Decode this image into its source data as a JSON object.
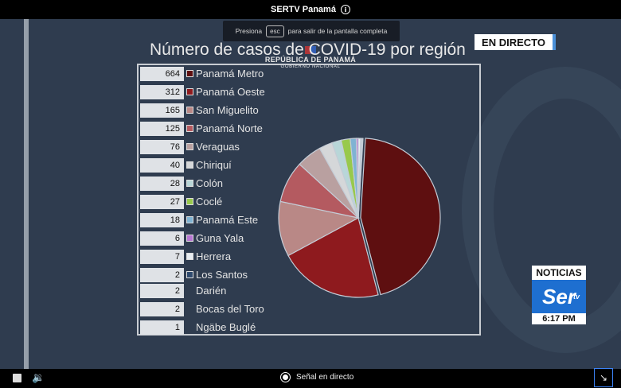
{
  "window": {
    "title": "SERTV Panamá",
    "info_icon": "i"
  },
  "fullscreen_tip": {
    "pre": "Presiona",
    "key": "esc",
    "post": "para salir de la pantalla completa"
  },
  "broadcast": {
    "gov_line1": "REPÚBLICA DE PANAMÁ",
    "gov_line2": "GOBIERNO NACIONAL",
    "title": "Número de casos de COVID-19 por región",
    "live_badge": "EN DIRECTO",
    "channel": {
      "noticias": "NOTICIAS",
      "logo": "Ser",
      "logo_suffix": "tv",
      "time": "6:17 PM"
    }
  },
  "chart_data": {
    "type": "pie",
    "title": "Número de casos de COVID-19 por región",
    "categories": [
      "Panamá Metro",
      "Panamá Oeste",
      "San Miguelito",
      "Panamá Norte",
      "Veraguas",
      "Chiriquí",
      "Colón",
      "Coclé",
      "Panamá Este",
      "Guna Yala",
      "Herrera",
      "Los Santos",
      "Darién",
      "Bocas del Toro",
      "Ngäbe Buglé"
    ],
    "values": [
      664,
      312,
      165,
      125,
      76,
      40,
      28,
      27,
      18,
      6,
      7,
      2,
      2,
      2,
      1
    ],
    "display_values": [
      "664",
      "312",
      "165",
      "125",
      "76",
      "40",
      "28",
      "27",
      "18",
      "6",
      "7",
      "2",
      "2",
      "2",
      "1"
    ],
    "colors": [
      "#5e0f10",
      "#8e1a1e",
      "#b98886",
      "#b45a60",
      "#b9a0a0",
      "#d5d7d9",
      "#b8d6d8",
      "#98c94c",
      "#7fb3d3",
      "#b776d2",
      "#e8edf2",
      "#2f4a6e",
      "#2f4a6e",
      "#2f4a6e",
      "#2f4a6e"
    ],
    "legend": "left"
  },
  "controls": {
    "live_signal": "Señal en directo"
  }
}
